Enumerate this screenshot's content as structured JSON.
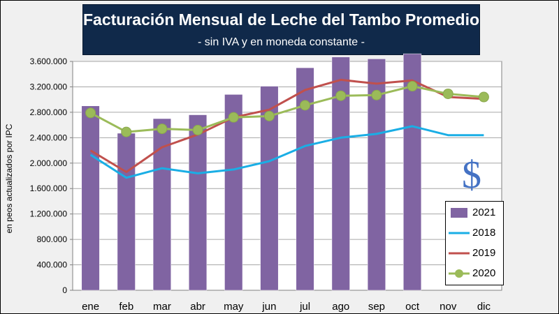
{
  "header": {
    "title": "Facturación Mensual de Leche del Tambo Promedio",
    "subtitle": "- sin IVA y en moneda constante -"
  },
  "annotation": {
    "symbol": "$"
  },
  "chart_data": {
    "type": "bar",
    "title": "Facturación Mensual de Leche del Tambo Promedio",
    "subtitle": "- sin IVA y en moneda constante -",
    "xlabel": "",
    "ylabel": "en peos actualizados por IPC",
    "ylim": [
      0,
      3600000
    ],
    "yticks": [
      0,
      400000,
      800000,
      1200000,
      1600000,
      2000000,
      2400000,
      2800000,
      3200000,
      3600000
    ],
    "ytick_labels": [
      "0",
      "400.000",
      "800.000",
      "1.200.000",
      "1.600.000",
      "2.000.000",
      "2.400.000",
      "2.800.000",
      "3.200.000",
      "3.600.000"
    ],
    "grid": true,
    "legend_position": "bottom-right",
    "categories": [
      "ene",
      "feb",
      "mar",
      "abr",
      "may",
      "jun",
      "jul",
      "ago",
      "sep",
      "oct",
      "nov",
      "dic"
    ],
    "series": [
      {
        "name": "2021",
        "kind": "bar",
        "color": "#8064a2",
        "values": [
          2900000,
          2470000,
          2700000,
          2760000,
          3080000,
          3210000,
          3500000,
          3670000,
          3640000,
          3720000,
          null,
          null
        ]
      },
      {
        "name": "2018",
        "kind": "line",
        "color": "#1aaee5",
        "values": [
          2130000,
          1770000,
          1920000,
          1840000,
          1900000,
          2030000,
          2270000,
          2400000,
          2460000,
          2580000,
          2440000,
          2440000
        ]
      },
      {
        "name": "2019",
        "kind": "line",
        "color": "#c0504d",
        "values": [
          2200000,
          1860000,
          2250000,
          2450000,
          2720000,
          2840000,
          3150000,
          3310000,
          3250000,
          3300000,
          3040000,
          3010000
        ]
      },
      {
        "name": "2020",
        "kind": "line-marker",
        "color": "#9bbb59",
        "values": [
          2790000,
          2490000,
          2540000,
          2520000,
          2720000,
          2740000,
          2910000,
          3060000,
          3070000,
          3210000,
          3090000,
          3040000
        ]
      }
    ]
  }
}
